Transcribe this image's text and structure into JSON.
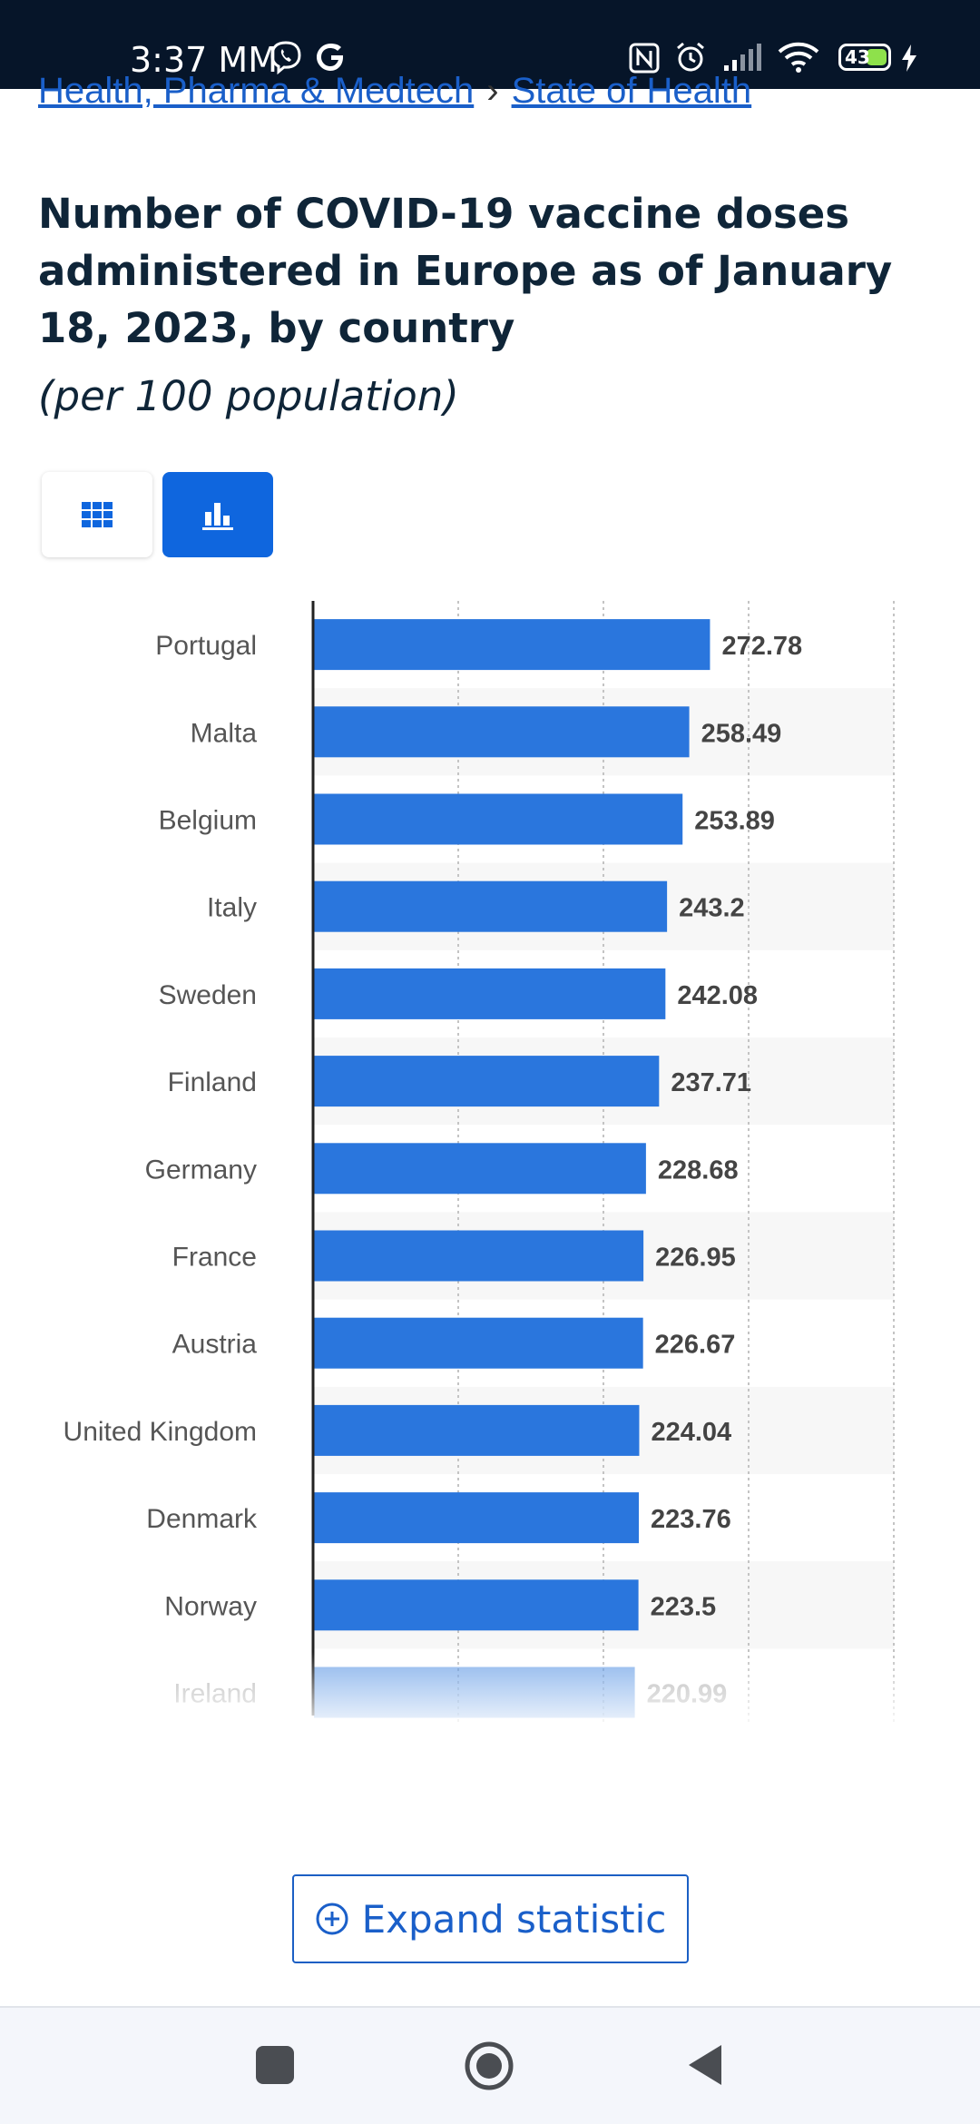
{
  "status_bar": {
    "time": "3:37 MM",
    "battery": "43"
  },
  "breadcrumb": {
    "item1": "Health, Pharma & Medtech",
    "separator": "›",
    "item2": "State of Health"
  },
  "title": "Number of COVID-19 vaccine doses administered in Europe as of January 18, 2023, by country",
  "subtitle": "(per 100 population)",
  "expand_label": "Expand statistic",
  "colors": {
    "bar": "#2a76dd",
    "accent": "#0f66de",
    "link": "#1a5fc9"
  },
  "chart_data": {
    "type": "bar",
    "orientation": "horizontal",
    "title": "Number of COVID-19 vaccine doses administered in Europe as of January 18, 2023, by country",
    "ylabel": "per 100 population",
    "xlim": [
      0,
      400
    ],
    "grid": true,
    "categories": [
      "Portugal",
      "Malta",
      "Belgium",
      "Italy",
      "Sweden",
      "Finland",
      "Germany",
      "France",
      "Austria",
      "United Kingdom",
      "Denmark",
      "Norway",
      "Ireland"
    ],
    "values": [
      272.78,
      258.49,
      253.89,
      243.2,
      242.08,
      237.71,
      228.68,
      226.95,
      226.67,
      224.04,
      223.76,
      223.5,
      220.99
    ],
    "labels": [
      "272.78",
      "258.49",
      "253.89",
      "243.2",
      "242.08",
      "237.71",
      "228.68",
      "226.95",
      "226.67",
      "224.04",
      "223.76",
      "223.5",
      "220.99"
    ]
  }
}
